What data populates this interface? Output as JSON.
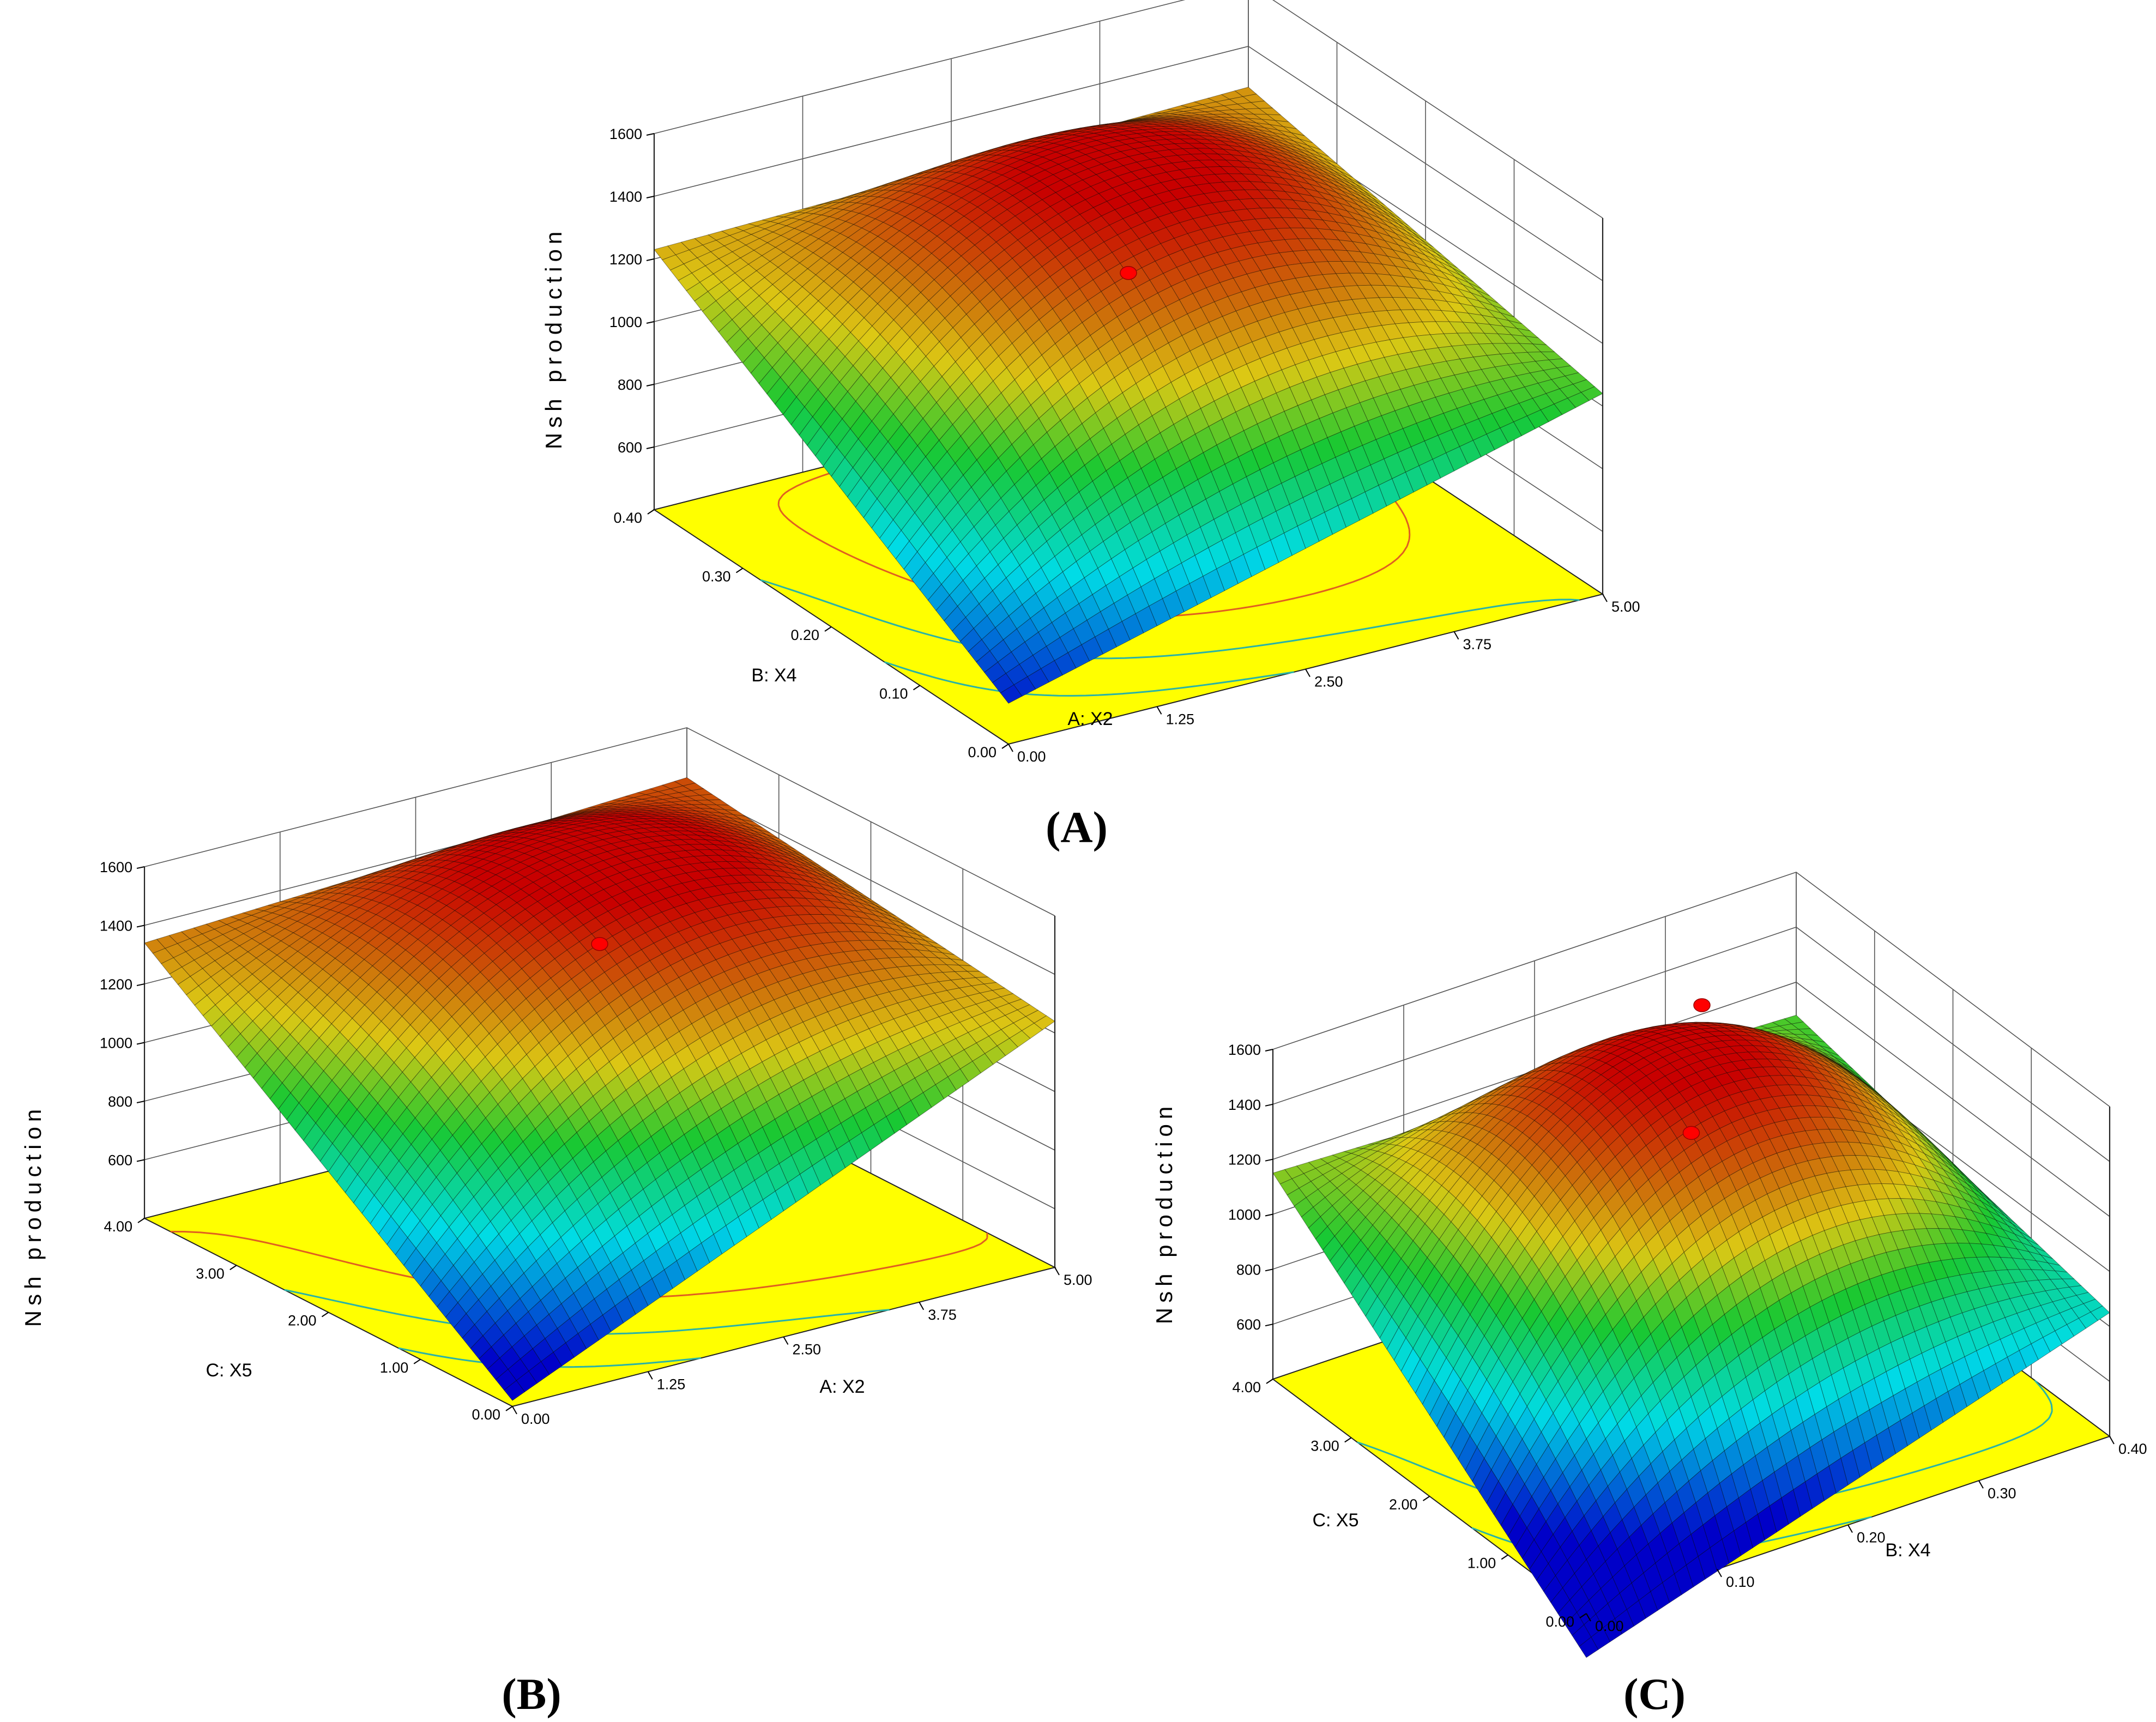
{
  "colors": {
    "floor": "#ffff00",
    "contour": "#2ab3a6",
    "low": "#0000c8",
    "mid": "#19c832",
    "high": "#c80000",
    "design_point": "#ff0000"
  },
  "chart_data": [
    {
      "type": "surface",
      "panel_label": "(A)",
      "zlabel": "Nsh production",
      "xlabel": "A: X2",
      "ylabel": "B: X4",
      "x_ticks": [
        "0.00",
        "1.25",
        "2.50",
        "3.75",
        "5.00"
      ],
      "y_ticks": [
        "0.00",
        "0.10",
        "0.20",
        "0.30",
        "0.40"
      ],
      "z_ticks": [
        "600",
        "800",
        "1000",
        "1200",
        "1400",
        "1600"
      ],
      "xlim": [
        0,
        5
      ],
      "ylim": [
        0,
        0.4
      ],
      "zlim": [
        400,
        1600
      ],
      "surface_corners": {
        "x0_y0": 530,
        "x1_y0": 1040,
        "x0_y1": 1230,
        "x1_y1": 1270
      },
      "surface_max": 1510,
      "design_point": {
        "x": 2.5,
        "y": 0.2,
        "z": 1290
      },
      "grid": true
    },
    {
      "type": "surface",
      "panel_label": "(B)",
      "zlabel": "Nsh production",
      "xlabel": "A: X2",
      "ylabel": "C: X5",
      "x_ticks": [
        "0.00",
        "1.25",
        "2.50",
        "3.75",
        "5.00"
      ],
      "y_ticks": [
        "0.00",
        "1.00",
        "2.00",
        "3.00",
        "4.00"
      ],
      "z_ticks": [
        "600",
        "800",
        "1000",
        "1200",
        "1400",
        "1600"
      ],
      "xlim": [
        0,
        5
      ],
      "ylim": [
        0,
        4
      ],
      "zlim": [
        400,
        1600
      ],
      "surface_corners": {
        "x0_y0": 420,
        "x1_y0": 1240,
        "x0_y1": 1340,
        "x1_y1": 1430
      },
      "surface_max": 1560,
      "design_point": {
        "x": 2.5,
        "y": 2.0,
        "z": 1420
      },
      "grid": true
    },
    {
      "type": "surface",
      "panel_label": "(C)",
      "zlabel": "Nsh production",
      "xlabel": "B: X4",
      "ylabel": "C: X5",
      "x_ticks": [
        "0.00",
        "0.10",
        "0.20",
        "0.30",
        "0.40"
      ],
      "y_ticks": [
        "0.00",
        "1.00",
        "2.00",
        "3.00",
        "4.00"
      ],
      "z_ticks": [
        "600",
        "800",
        "1000",
        "1200",
        "1400",
        "1600"
      ],
      "xlim": [
        0,
        0.4
      ],
      "ylim": [
        0,
        4
      ],
      "zlim": [
        400,
        1600
      ],
      "surface_corners": {
        "x0_y0": 240,
        "x1_y0": 850,
        "x0_y1": 1150,
        "x1_y1": 1080
      },
      "surface_max": 1570,
      "design_points": [
        {
          "x": 0.2,
          "y": 2.0,
          "z": 1400
        },
        {
          "x": 0.28,
          "y": 3.2,
          "z": 1480
        }
      ],
      "grid": true
    }
  ]
}
